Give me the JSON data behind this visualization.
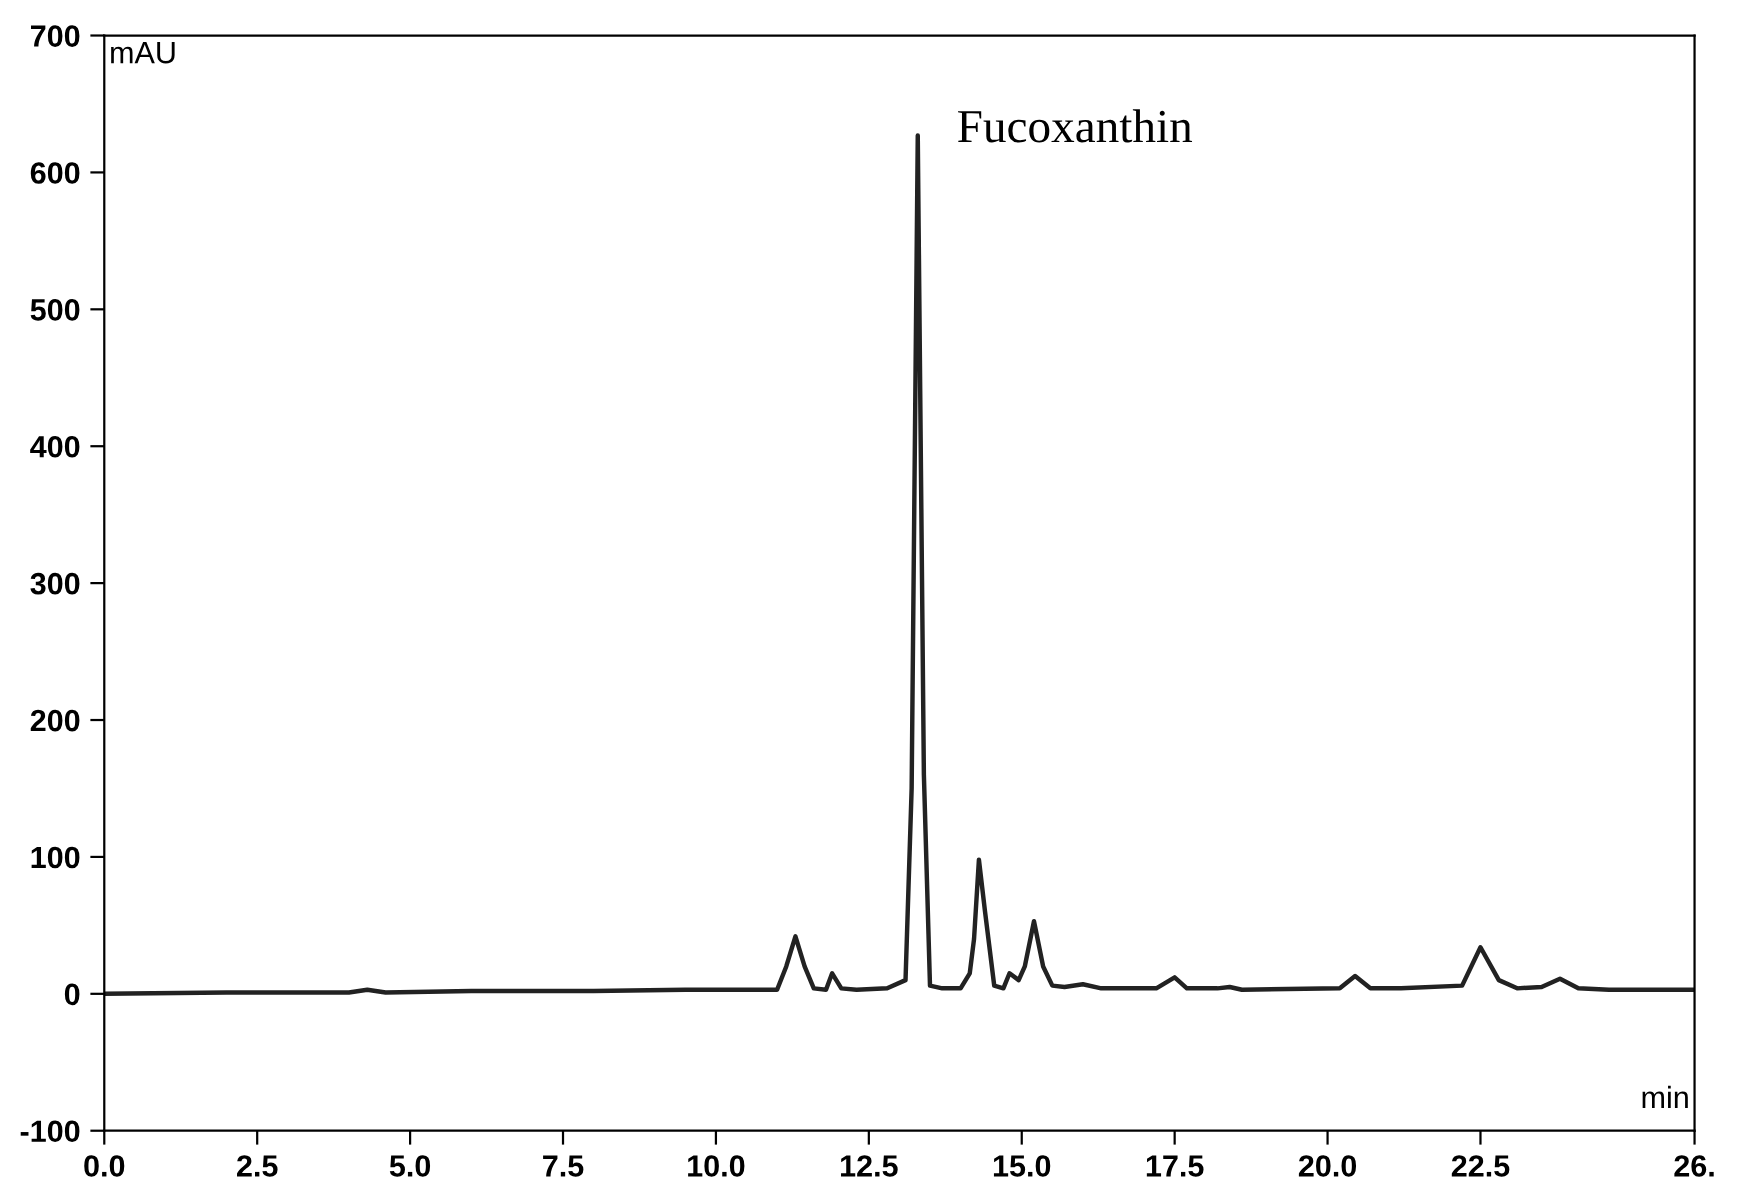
{
  "chart_data": {
    "type": "line",
    "xlabel": "min",
    "ylabel": "mAU",
    "xlim": [
      0,
      26
    ],
    "ylim": [
      -100,
      700
    ],
    "xticks": [
      {
        "value": 0,
        "label": "0.0"
      },
      2.5,
      {
        "value": 5,
        "label": "5.0"
      },
      7.5,
      {
        "value": 10,
        "label": "10.0"
      },
      12.5,
      {
        "value": 15,
        "label": "15.0"
      },
      17.5,
      {
        "value": 20,
        "label": "20.0"
      },
      22.5,
      {
        "value": 26,
        "label": "26."
      }
    ],
    "yticks": [
      -100,
      0,
      100,
      200,
      300,
      400,
      500,
      600,
      700
    ],
    "grid": false,
    "marker": "none",
    "line_style": "solid",
    "annotations": [
      {
        "text": "Fucoxanthin",
        "x": 13.3,
        "y": 627
      }
    ],
    "series": [
      {
        "color": "#222222",
        "x": [
          0,
          2,
          4,
          4.3,
          4.6,
          6,
          8,
          9.5,
          10.5,
          11.0,
          11.15,
          11.3,
          11.45,
          11.6,
          11.8,
          11.9,
          12.05,
          12.3,
          12.8,
          13.1,
          13.2,
          13.3,
          13.4,
          13.5,
          13.7,
          14.0,
          14.15,
          14.22,
          14.3,
          14.4,
          14.55,
          14.7,
          14.8,
          14.95,
          15.05,
          15.2,
          15.35,
          15.5,
          15.7,
          16.0,
          16.3,
          17.2,
          17.5,
          17.7,
          18.2,
          18.4,
          18.6,
          20.2,
          20.45,
          20.7,
          21.2,
          22.2,
          22.5,
          22.8,
          23.1,
          23.5,
          23.8,
          24.1,
          24.6,
          26
        ],
        "values": [
          0,
          1,
          1,
          3,
          1,
          2,
          2,
          3,
          3,
          3,
          20,
          42,
          20,
          4,
          3,
          15,
          4,
          3,
          4,
          10,
          150,
          627,
          160,
          6,
          4,
          4,
          15,
          40,
          98,
          60,
          6,
          4,
          15,
          10,
          20,
          53,
          20,
          6,
          5,
          7,
          4,
          4,
          12,
          4,
          4,
          5,
          3,
          4,
          13,
          4,
          4,
          6,
          34,
          10,
          4,
          5,
          11,
          4,
          3,
          3
        ]
      }
    ]
  }
}
